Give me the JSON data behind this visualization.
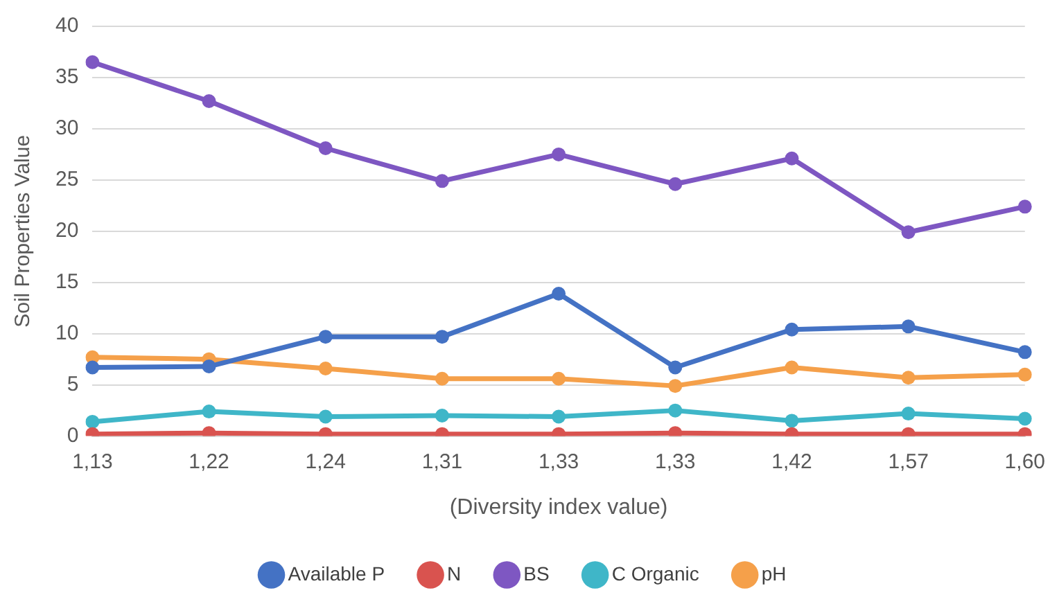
{
  "chart_data": {
    "type": "line",
    "xlabel": "(Diversity index value)",
    "ylabel": "Soil Properties Value",
    "categories": [
      "1,13",
      "1,22",
      "1,24",
      "1,31",
      "1,33",
      "1,33",
      "1,42",
      "1,57",
      "1,60"
    ],
    "series": [
      {
        "name": "Available P",
        "color": "#4472c4",
        "values": [
          6.7,
          6.8,
          9.7,
          9.7,
          13.9,
          6.7,
          10.4,
          10.7,
          8.2
        ]
      },
      {
        "name": "N",
        "color": "#d9534f",
        "values": [
          0.2,
          0.3,
          0.2,
          0.2,
          0.2,
          0.3,
          0.2,
          0.2,
          0.2
        ]
      },
      {
        "name": "BS",
        "color": "#7e57c2",
        "values": [
          36.5,
          32.7,
          28.1,
          24.9,
          27.5,
          24.6,
          27.1,
          19.9,
          22.4
        ]
      },
      {
        "name": "C Organic",
        "color": "#3fb6c8",
        "values": [
          1.4,
          2.4,
          1.9,
          2.0,
          1.9,
          2.5,
          1.5,
          2.2,
          1.7
        ]
      },
      {
        "name": "pH",
        "color": "#f5a04a",
        "values": [
          7.7,
          7.5,
          6.6,
          5.6,
          5.6,
          4.9,
          6.7,
          5.7,
          6.0
        ]
      }
    ],
    "ylim": [
      0,
      40
    ],
    "yticks": [
      0,
      5,
      10,
      15,
      20,
      25,
      30,
      35,
      40
    ],
    "grid": "y",
    "legend": "bottom",
    "marker": "circle",
    "line_style": "solid"
  }
}
